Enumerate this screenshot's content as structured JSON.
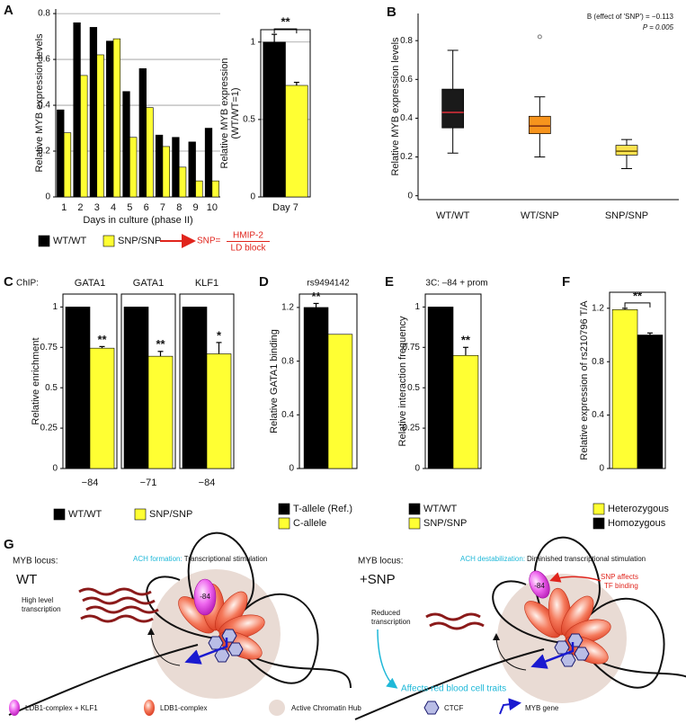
{
  "panel_labels": [
    "A",
    "B",
    "C",
    "D",
    "E",
    "F",
    "G"
  ],
  "chart_data": [
    {
      "type": "bar",
      "ylabel": [
        "Relative MYB expression levels"
      ],
      "xlabel": "Days in culture (phase II)",
      "categories": [
        "1",
        "2",
        "3",
        "4",
        "5",
        "6",
        "7",
        "8",
        "9",
        "10"
      ],
      "series": [
        {
          "name": "WT/WT",
          "color": "#000000",
          "values": [
            0.38,
            0.76,
            0.74,
            0.68,
            0.46,
            0.56,
            0.27,
            0.26,
            0.24,
            0.3
          ]
        },
        {
          "name": "SNP/SNP",
          "color": "#ffff33",
          "values": [
            0.28,
            0.53,
            0.62,
            0.69,
            0.26,
            0.39,
            0.22,
            0.13,
            0.07,
            0.07
          ]
        }
      ],
      "ylim": [
        0,
        0.82
      ],
      "yticks": [
        0,
        0.2,
        0.4,
        0.6,
        0.8
      ],
      "grid": true,
      "annotation": {
        "prefix": "SNP=",
        "lines": [
          "HMIP-2",
          "LD block"
        ]
      }
    },
    {
      "type": "bar",
      "ylabel": [
        "Relative MYB expression",
        "(WT/WT=1)"
      ],
      "categories": [
        "Day 7"
      ],
      "series": [
        {
          "color": "#000000",
          "values": [
            1
          ],
          "errors": [
            0.05
          ]
        },
        {
          "color": "#ffff33",
          "values": [
            0.72
          ],
          "errors": [
            0.02
          ]
        }
      ],
      "ylim": [
        0,
        1.08
      ],
      "yticks": [
        0,
        0.5,
        1
      ],
      "grid": true,
      "significance": [
        "**"
      ]
    },
    {
      "type": "box",
      "ylabel": [
        "Relative MYB expression levels"
      ],
      "categories": [
        "WT/WT",
        "WT/SNP",
        "SNP/SNP"
      ],
      "boxes": [
        {
          "whislo": 0.22,
          "q1": 0.35,
          "med": 0.43,
          "q3": 0.55,
          "whishi": 0.75,
          "fliers": []
        },
        {
          "whislo": 0.2,
          "q1": 0.32,
          "med": 0.36,
          "q3": 0.41,
          "whishi": 0.51,
          "fliers": [
            0.82
          ]
        },
        {
          "whislo": 0.14,
          "q1": 0.21,
          "med": 0.23,
          "q3": 0.26,
          "whishi": 0.29,
          "fliers": []
        }
      ],
      "colors": [
        "#1a1a1a",
        "#f7941d",
        "#fde24f"
      ],
      "median_colors": [
        "#e0303a",
        "#7a2a10",
        "#6b5500"
      ],
      "ylim": [
        -0.02,
        0.94
      ],
      "yticks": [
        0,
        0.2,
        0.4,
        0.6,
        0.8
      ],
      "annotations": [
        "B (effect of 'SNP') = −0.113",
        "P = 0.005"
      ]
    },
    {
      "type": "bar",
      "label": "ChIP:",
      "ylabel": [
        "Relative enrichment"
      ],
      "titles": [
        "GATA1",
        "GATA1",
        "KLF1"
      ],
      "categories": [
        "−84",
        "−71",
        "−84"
      ],
      "series": [
        {
          "name": "WT/WT",
          "color": "#000000",
          "values": [
            1,
            1,
            1
          ]
        },
        {
          "name": "SNP/SNP",
          "color": "#ffff33",
          "values": [
            0.745,
            0.695,
            0.71
          ],
          "errors": [
            0.01,
            0.03,
            0.07
          ],
          "labels": [
            "**",
            "**",
            "*"
          ]
        }
      ],
      "ylim": [
        0,
        1.08
      ],
      "yticks": [
        0,
        0.25,
        0.5,
        0.75,
        1
      ]
    },
    {
      "type": "bar",
      "title": "rs9494142",
      "ylabel": [
        "Relative GATA1 binding"
      ],
      "categories": [
        null
      ],
      "series": [
        {
          "name": "T-allele (Ref.)",
          "color": "#000000",
          "values": [
            1.2
          ],
          "errors": [
            0.03
          ],
          "labels": [
            "**"
          ]
        },
        {
          "name": "C-allele",
          "color": "#ffff33",
          "values": [
            1.0
          ]
        }
      ],
      "ylim": [
        0,
        1.3
      ],
      "yticks": [
        0,
        0.4,
        0.8,
        1.2
      ]
    },
    {
      "type": "bar",
      "title": "3C: –84 + prom",
      "ylabel": [
        "Relative interaction frequency"
      ],
      "categories": [
        null
      ],
      "series": [
        {
          "name": "WT/WT",
          "color": "#000000",
          "values": [
            1
          ]
        },
        {
          "name": "SNP/SNP",
          "color": "#ffff33",
          "values": [
            0.7
          ],
          "errors": [
            0.05
          ],
          "labels": [
            "**"
          ]
        }
      ],
      "ylim": [
        0,
        1.08
      ],
      "yticks": [
        0,
        0.25,
        0.5,
        0.75,
        1
      ]
    },
    {
      "type": "bar",
      "ylabel": [
        "Relative expression of rs210796 T/A"
      ],
      "categories": [
        null
      ],
      "series": [
        {
          "name": "Heterozygous",
          "color": "#ffff33",
          "values": [
            1.19
          ],
          "errors": [
            0.01
          ]
        },
        {
          "name": "Homozygous",
          "color": "#000000",
          "values": [
            1.0
          ],
          "errors": [
            0.015
          ]
        }
      ],
      "ylim": [
        0,
        1.32
      ],
      "yticks": [
        0,
        0.4,
        0.8,
        1.2
      ],
      "significance": [
        "**"
      ]
    }
  ],
  "diagram": {
    "left": {
      "locus": "MYB locus:",
      "state": "WT",
      "heading": "ACH formation:",
      "heading_text": "Transcriptional stimulation",
      "transcription": [
        "High level",
        "transcription"
      ],
      "site": "-84"
    },
    "right": {
      "locus": "MYB locus:",
      "state": "+SNP",
      "heading": "ACH destabilization:",
      "heading_text": "Diminished transcriptional stimulation",
      "note": [
        "SNP affects",
        "TF binding"
      ],
      "transcription": [
        "Reduced",
        "transcription"
      ],
      "site": "-84",
      "effect": "Affects red blood cell traits"
    },
    "legend": [
      "LDB1-complex + KLF1",
      "LDB1-complex",
      "Active Chromatin Hub",
      "CTCF",
      "MYB gene"
    ]
  }
}
